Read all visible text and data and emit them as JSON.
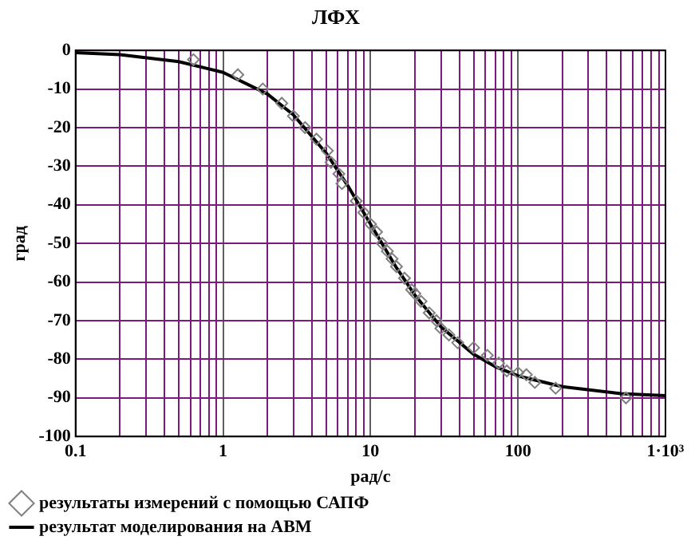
{
  "chart_data": {
    "type": "scatter",
    "title": "ЛФХ",
    "xlabel": "рад/с",
    "ylabel": "град",
    "log": "x",
    "xlim": [
      0.1,
      1000
    ],
    "ylim": [
      -100,
      0
    ],
    "xticks": [
      0.1,
      {
        "value": 0.2,
        "label": null
      },
      {
        "value": 0.3,
        "label": null
      },
      {
        "value": 0.4,
        "label": null
      },
      {
        "value": 0.5,
        "label": null
      },
      {
        "value": 0.6,
        "label": null
      },
      {
        "value": 0.7,
        "label": null
      },
      {
        "value": 0.8,
        "label": null
      },
      {
        "value": 0.9,
        "label": null
      },
      1,
      {
        "value": 2,
        "label": null
      },
      {
        "value": 3,
        "label": null
      },
      {
        "value": 4,
        "label": null
      },
      {
        "value": 5,
        "label": null
      },
      {
        "value": 6,
        "label": null
      },
      {
        "value": 7,
        "label": null
      },
      {
        "value": 8,
        "label": null
      },
      {
        "value": 9,
        "label": null
      },
      10,
      {
        "value": 20,
        "label": null
      },
      {
        "value": 30,
        "label": null
      },
      {
        "value": 40,
        "label": null
      },
      {
        "value": 50,
        "label": null
      },
      {
        "value": 60,
        "label": null
      },
      {
        "value": 70,
        "label": null
      },
      {
        "value": 80,
        "label": null
      },
      {
        "value": 90,
        "label": null
      },
      100,
      {
        "value": 200,
        "label": null
      },
      {
        "value": 300,
        "label": null
      },
      {
        "value": 400,
        "label": null
      },
      {
        "value": 500,
        "label": null
      },
      {
        "value": 600,
        "label": null
      },
      {
        "value": 700,
        "label": null
      },
      {
        "value": 800,
        "label": null
      },
      {
        "value": 900,
        "label": null
      },
      {
        "value": 1000,
        "label": "1·10³"
      }
    ],
    "yticks": [
      -100,
      -90,
      -80,
      -70,
      -60,
      -50,
      -40,
      -30,
      -20,
      -10,
      0
    ],
    "grid": true,
    "legend": "bottom",
    "series": [
      {
        "name": "результаты измерений с помощью САПФ",
        "type": "scatter",
        "marker": "diamond",
        "color": "#808080",
        "x": [
          0.63,
          1.26,
          1.86,
          2.5,
          3,
          3.6,
          4.3,
          5.1,
          5.4,
          6.1,
          6.4,
          8,
          9,
          10,
          11,
          12,
          13,
          14,
          15,
          17,
          19,
          20,
          22,
          25,
          28,
          30,
          34,
          39,
          50,
          62,
          74,
          84,
          100,
          114,
          130,
          180,
          540
        ],
        "values": [
          -2.4,
          -6.3,
          -10,
          -13.7,
          -17,
          -20,
          -23,
          -26,
          -29,
          -32,
          -34.5,
          -39,
          -42,
          -45,
          -47,
          -50,
          -52,
          -54,
          -56,
          -59,
          -62,
          -63,
          -65,
          -68,
          -70,
          -72,
          -73.7,
          -75.7,
          -77,
          -79,
          -81,
          -83,
          -83.5,
          -84,
          -86,
          -87.5,
          -90
        ]
      },
      {
        "name": "результат моделирования на АВМ",
        "type": "line",
        "marker": "none",
        "line_style": "solid",
        "color": "#000000",
        "x": [
          0.1,
          0.2,
          0.5,
          1,
          2,
          3,
          5,
          7,
          10,
          15,
          20,
          30,
          50,
          70,
          100,
          200,
          500,
          1000
        ],
        "values": [
          -0.6,
          -1.1,
          -2.9,
          -5.7,
          -11.3,
          -16.7,
          -26.6,
          -35,
          -45,
          -56.3,
          -63.4,
          -71.6,
          -78.7,
          -81.9,
          -84.3,
          -87.1,
          -88.9,
          -89.4
        ]
      }
    ]
  }
}
